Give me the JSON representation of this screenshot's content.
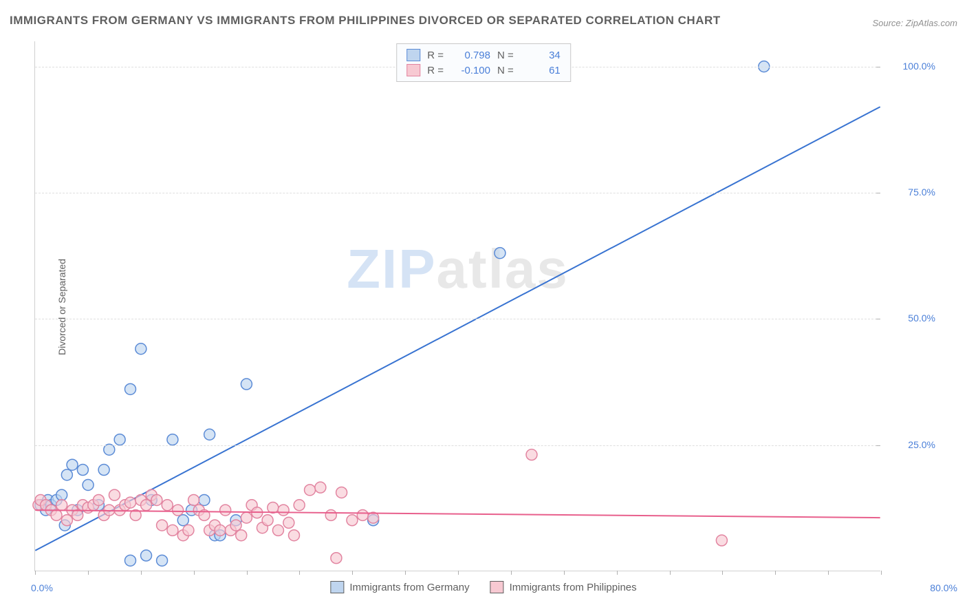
{
  "title": "IMMIGRANTS FROM GERMANY VS IMMIGRANTS FROM PHILIPPINES DIVORCED OR SEPARATED CORRELATION CHART",
  "source": "Source: ZipAtlas.com",
  "y_axis_label": "Divorced or Separated",
  "watermark_a": "ZIP",
  "watermark_b": "atlas",
  "x_origin": "0.0%",
  "x_max": "80.0%",
  "chart": {
    "type": "scatter",
    "background_color": "#ffffff",
    "grid_color": "#dedede",
    "axis_color": "#d0d0d0",
    "xlim": [
      0,
      80
    ],
    "ylim": [
      0,
      105
    ],
    "y_ticks": [
      25.0,
      50.0,
      75.0,
      100.0
    ],
    "y_tick_labels": [
      "25.0%",
      "50.0%",
      "75.0%",
      "100.0%"
    ],
    "x_tick_marks": [
      0,
      5,
      10,
      15,
      20,
      25,
      30,
      35,
      40,
      45,
      50,
      55,
      60,
      65,
      70,
      75,
      80
    ],
    "marker_radius": 8,
    "marker_stroke_width": 1.5,
    "line_width": 2,
    "series": [
      {
        "name": "Immigrants from Germany",
        "fill": "#bfd5ef",
        "stroke": "#5b8bd6",
        "opacity": 0.65,
        "R": "0.798",
        "N": "34",
        "trend": {
          "x1": 0,
          "y1": 4,
          "x2": 80,
          "y2": 92,
          "color": "#3873d1"
        },
        "points": [
          [
            0.5,
            13
          ],
          [
            1,
            12
          ],
          [
            1.2,
            14
          ],
          [
            1.5,
            13
          ],
          [
            2,
            14
          ],
          [
            2.5,
            15
          ],
          [
            2.8,
            9
          ],
          [
            3,
            19
          ],
          [
            3.5,
            21
          ],
          [
            4,
            12
          ],
          [
            4.5,
            20
          ],
          [
            5,
            17
          ],
          [
            6,
            13
          ],
          [
            6.5,
            20
          ],
          [
            7,
            24
          ],
          [
            8,
            26
          ],
          [
            9,
            36
          ],
          [
            9,
            2
          ],
          [
            10,
            44
          ],
          [
            10.5,
            3
          ],
          [
            11,
            14
          ],
          [
            12,
            2
          ],
          [
            13,
            26
          ],
          [
            14,
            10
          ],
          [
            14.8,
            12
          ],
          [
            16,
            14
          ],
          [
            16.5,
            27
          ],
          [
            17,
            7
          ],
          [
            17.5,
            7
          ],
          [
            19,
            10
          ],
          [
            20,
            37
          ],
          [
            32,
            10
          ],
          [
            44,
            63
          ],
          [
            69,
            100
          ]
        ]
      },
      {
        "name": "Immigrants from Philippines",
        "fill": "#f7c9d2",
        "stroke": "#e284a0",
        "opacity": 0.65,
        "R": "-0.100",
        "N": "61",
        "trend": {
          "x1": 0,
          "y1": 12,
          "x2": 80,
          "y2": 10.5,
          "color": "#e85f8c"
        },
        "points": [
          [
            0.3,
            13
          ],
          [
            0.5,
            14
          ],
          [
            1,
            13
          ],
          [
            1.5,
            12
          ],
          [
            2,
            11
          ],
          [
            2.5,
            13
          ],
          [
            3,
            10
          ],
          [
            3.5,
            12
          ],
          [
            4,
            11
          ],
          [
            4.5,
            13
          ],
          [
            5,
            12.5
          ],
          [
            5.5,
            13
          ],
          [
            6,
            14
          ],
          [
            6.5,
            11
          ],
          [
            7,
            12
          ],
          [
            7.5,
            15
          ],
          [
            8,
            12
          ],
          [
            8.5,
            13
          ],
          [
            9,
            13.5
          ],
          [
            9.5,
            11
          ],
          [
            10,
            14
          ],
          [
            10.5,
            13
          ],
          [
            11,
            15
          ],
          [
            11.5,
            14
          ],
          [
            12,
            9
          ],
          [
            12.5,
            13
          ],
          [
            13,
            8
          ],
          [
            13.5,
            12
          ],
          [
            14,
            7
          ],
          [
            14.5,
            8
          ],
          [
            15,
            14
          ],
          [
            15.5,
            12
          ],
          [
            16,
            11
          ],
          [
            16.5,
            8
          ],
          [
            17,
            9
          ],
          [
            17.5,
            8
          ],
          [
            18,
            12
          ],
          [
            18.5,
            8
          ],
          [
            19,
            9
          ],
          [
            19.5,
            7
          ],
          [
            20,
            10.5
          ],
          [
            20.5,
            13
          ],
          [
            21,
            11.5
          ],
          [
            21.5,
            8.5
          ],
          [
            22,
            10
          ],
          [
            22.5,
            12.5
          ],
          [
            23,
            8
          ],
          [
            23.5,
            12
          ],
          [
            24,
            9.5
          ],
          [
            24.5,
            7
          ],
          [
            25,
            13
          ],
          [
            26,
            16
          ],
          [
            27,
            16.5
          ],
          [
            28,
            11
          ],
          [
            28.5,
            2.5
          ],
          [
            29,
            15.5
          ],
          [
            30,
            10
          ],
          [
            31,
            11
          ],
          [
            32,
            10.5
          ],
          [
            47,
            23
          ],
          [
            65,
            6
          ]
        ]
      }
    ]
  },
  "legend_stats": {
    "R_label": "R =",
    "N_label": "N ="
  },
  "bottom_legend": [
    {
      "label": "Immigrants from Germany",
      "swatch": "sw-blue"
    },
    {
      "label": "Immigrants from Philippines",
      "swatch": "sw-pink"
    }
  ]
}
